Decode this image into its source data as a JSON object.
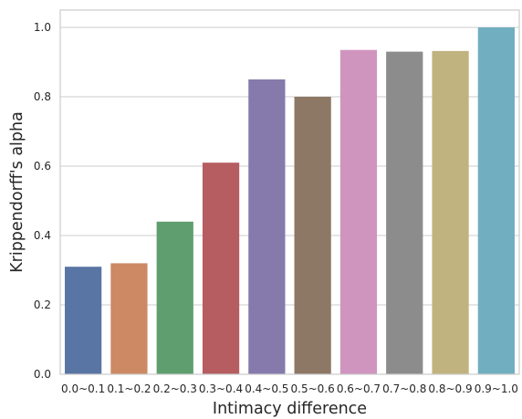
{
  "chart_data": {
    "type": "bar",
    "categories": [
      "0.0~0.1",
      "0.1~0.2",
      "0.2~0.3",
      "0.3~0.4",
      "0.4~0.5",
      "0.5~0.6",
      "0.6~0.7",
      "0.7~0.8",
      "0.8~0.9",
      "0.9~1.0"
    ],
    "values": [
      0.31,
      0.32,
      0.44,
      0.61,
      0.85,
      0.8,
      0.935,
      0.93,
      0.932,
      1.0
    ],
    "colors": [
      "#5875a4",
      "#cc8963",
      "#5f9e6e",
      "#b55d60",
      "#857aab",
      "#8d7866",
      "#d095bf",
      "#8c8c8c",
      "#c1b37f",
      "#71aec0"
    ],
    "title": "",
    "xlabel": "Intimacy difference",
    "ylabel": "Krippendorff's alpha",
    "ylim": [
      0,
      1.05
    ],
    "yticks": [
      0.0,
      0.2,
      0.4,
      0.6,
      0.8,
      1.0
    ],
    "ytick_labels": [
      "0.0",
      "0.2",
      "0.4",
      "0.6",
      "0.8",
      "1.0"
    ],
    "grid": "horizontal",
    "background": "#ffffff",
    "grid_color": "#cccccc"
  }
}
